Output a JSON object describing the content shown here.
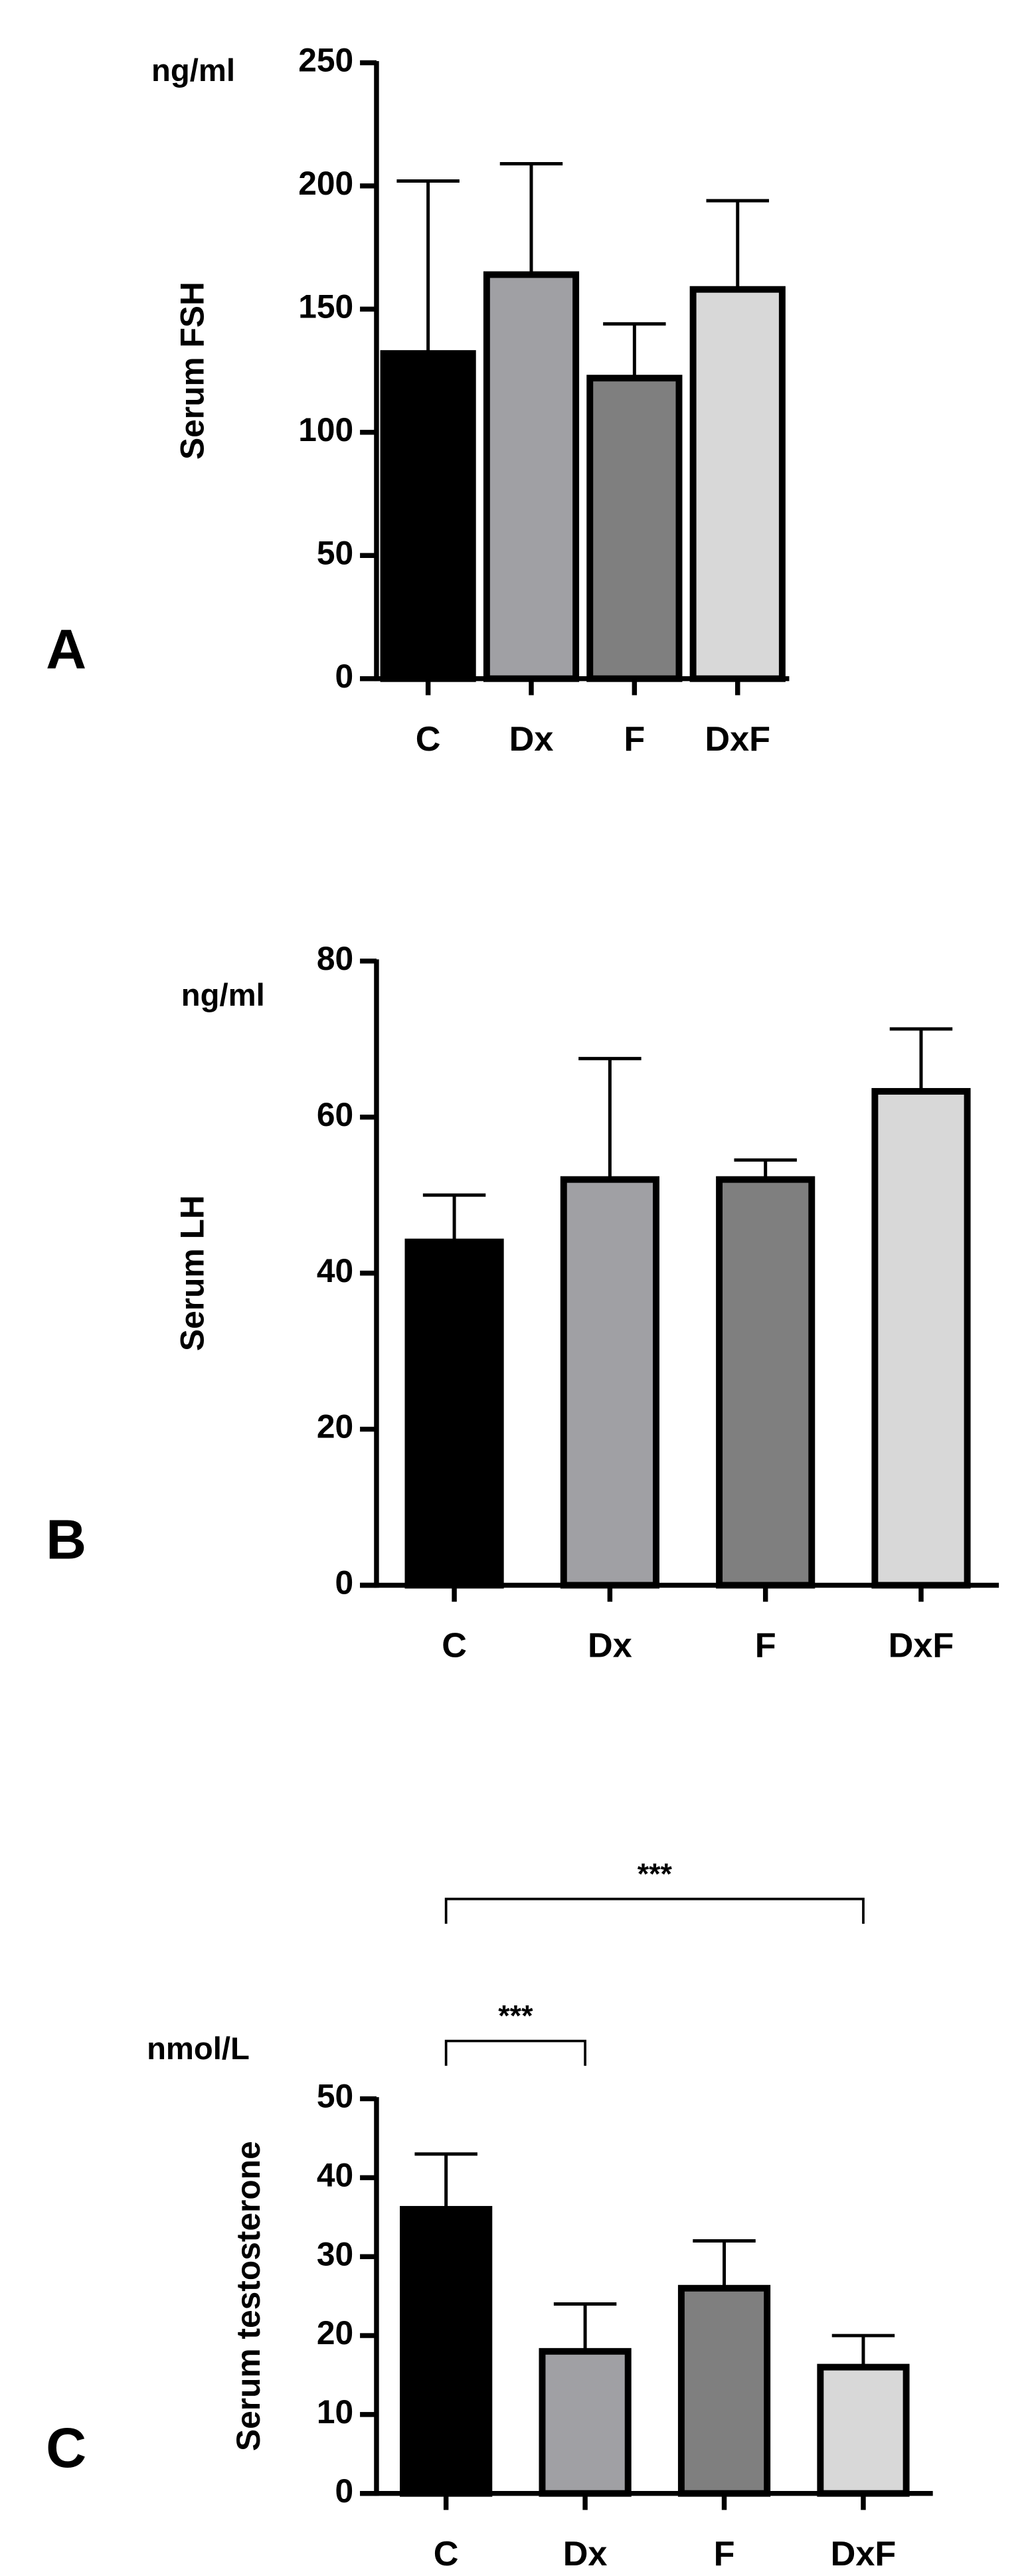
{
  "chart_data": [
    {
      "type": "bar",
      "panel": "A",
      "unit": "ng/ml",
      "ylabel": "Serum FSH",
      "categories": [
        "C",
        "Dx",
        "F",
        "DxF"
      ],
      "values": [
        132,
        164,
        122,
        158
      ],
      "errors": [
        70,
        45,
        22,
        36
      ],
      "colors": [
        "#000000",
        "#a0a0a4",
        "#7f7f7f",
        "#d8d8d8"
      ],
      "ylim": [
        0,
        250
      ],
      "yticks": [
        0,
        50,
        100,
        150,
        200,
        250
      ]
    },
    {
      "type": "bar",
      "panel": "B",
      "unit": "ng/ml",
      "ylabel": "Serum LH",
      "categories": [
        "C",
        "Dx",
        "F",
        "DxF"
      ],
      "values": [
        44,
        52,
        52,
        63.3
      ],
      "errors": [
        6,
        15.5,
        2.5,
        8
      ],
      "colors": [
        "#000000",
        "#a0a0a4",
        "#7f7f7f",
        "#d8d8d8"
      ],
      "ylim": [
        0,
        80
      ],
      "yticks": [
        0,
        20,
        40,
        60,
        80
      ]
    },
    {
      "type": "bar",
      "panel": "C",
      "unit": "nmol/L",
      "ylabel": "Serum testosterone",
      "categories": [
        "C",
        "Dx",
        "F",
        "DxF"
      ],
      "values": [
        36,
        18,
        26,
        16
      ],
      "errors": [
        7,
        6,
        6,
        4
      ],
      "colors": [
        "#000000",
        "#a0a0a4",
        "#7f7f7f",
        "#d8d8d8"
      ],
      "ylim": [
        0,
        50
      ],
      "yticks": [
        0,
        10,
        20,
        30,
        40,
        50
      ],
      "annotations": [
        {
          "between": [
            "C",
            "Dx"
          ],
          "label": "***"
        },
        {
          "between": [
            "C",
            "DxF"
          ],
          "label": "***"
        }
      ]
    }
  ]
}
